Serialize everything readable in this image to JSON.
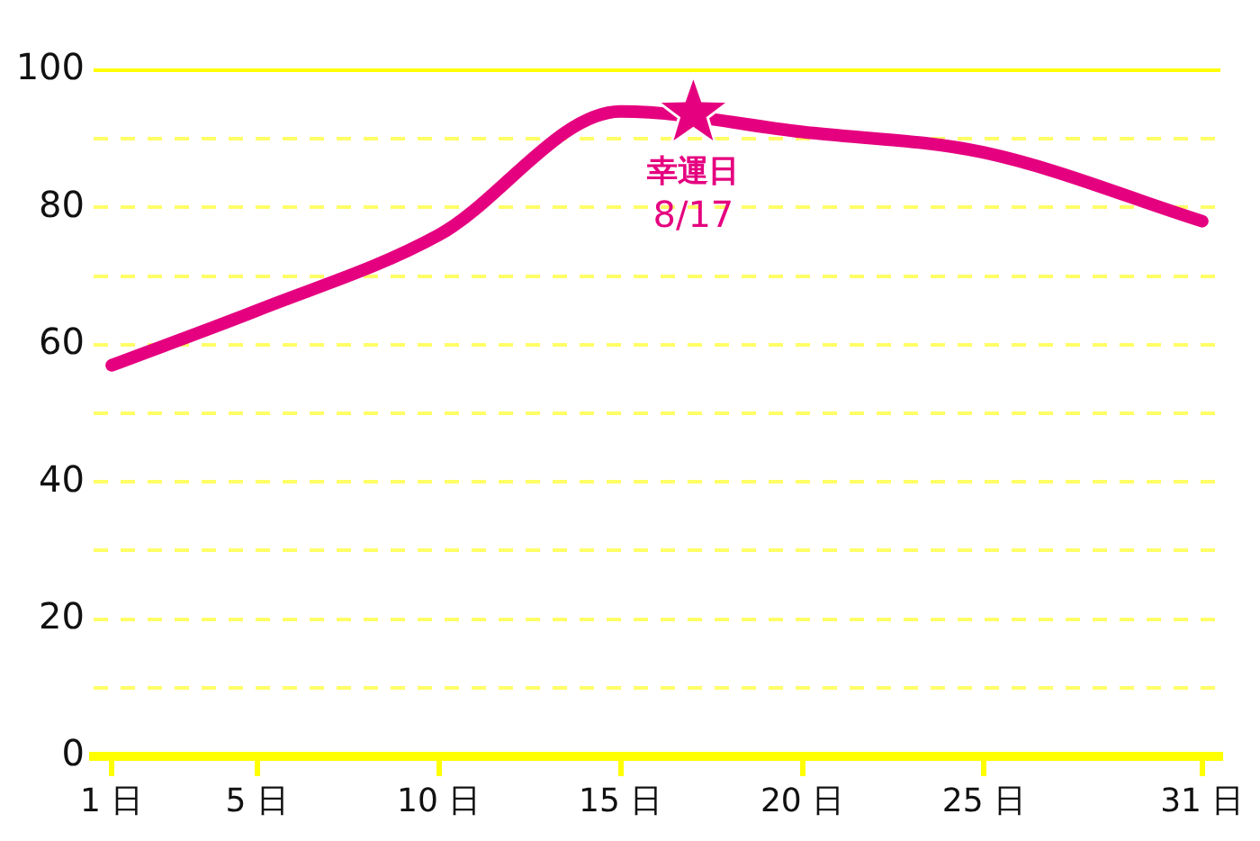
{
  "chart_data": {
    "type": "line",
    "x": [
      1,
      5,
      10,
      15,
      20,
      25,
      31
    ],
    "xlim": [
      0.5,
      31.5
    ],
    "xticks": [
      {
        "value": 1,
        "label": "1 日"
      },
      {
        "value": 5,
        "label": "5 日"
      },
      {
        "value": 10,
        "label": "10 日"
      },
      {
        "value": 15,
        "label": "15 日"
      },
      {
        "value": 20,
        "label": "20 日"
      },
      {
        "value": 25,
        "label": "25 日"
      },
      {
        "value": 31,
        "label": "31 日"
      }
    ],
    "ylim": [
      0,
      100
    ],
    "yticks": [
      0,
      {
        "value": 10,
        "label": null
      },
      20,
      {
        "value": 30,
        "label": null
      },
      40,
      {
        "value": 50,
        "label": null
      },
      60,
      {
        "value": 70,
        "label": null
      },
      80,
      {
        "value": 90,
        "label": null
      },
      100
    ],
    "grid": "y",
    "legend": false,
    "line_style": "solid",
    "marker": "none",
    "series": [
      {
        "color": "#e5007f",
        "values": [
          57,
          65,
          76,
          94,
          91,
          88,
          78
        ]
      },
      {
        "type": "scatter",
        "marker": "star",
        "x": [
          17
        ],
        "color": "#e5007f",
        "values": [
          94
        ]
      }
    ],
    "annotations": [
      {
        "text": "幸運日\n8/17",
        "x": 17,
        "y": 94
      }
    ]
  }
}
